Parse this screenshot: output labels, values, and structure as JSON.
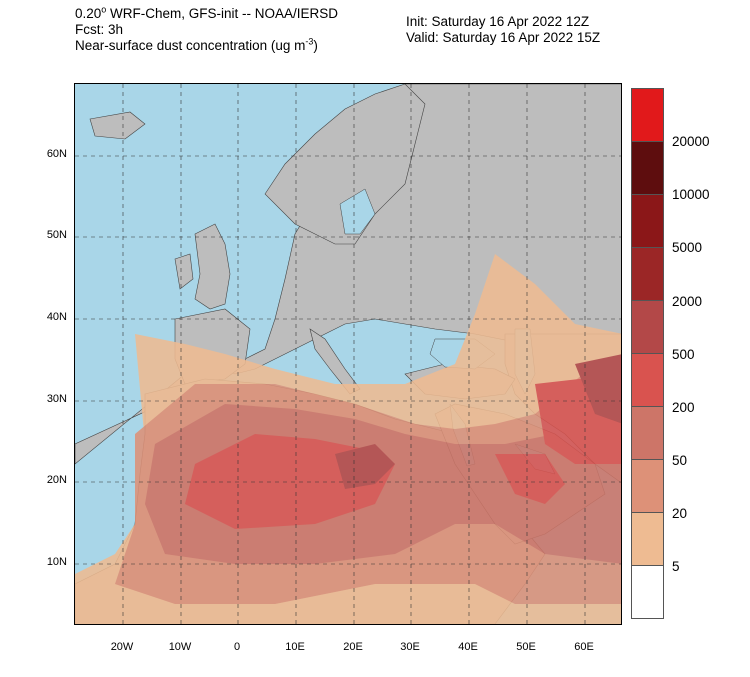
{
  "header": {
    "model_prefix": "0.20",
    "model_degree": "o",
    "model_rest": " WRF-Chem, GFS-init -- NOAA/IERSD",
    "fcst": "Fcst: 3h",
    "field_prefix": "Near-surface dust concentration (ug m",
    "field_exp": "-3",
    "field_suffix": ")",
    "init": "Init: Saturday 16 Apr 2022  12Z",
    "valid": "Valid: Saturday 16 Apr 2022  15Z"
  },
  "map": {
    "lat_labels": [
      "60N",
      "50N",
      "40N",
      "30N",
      "20N",
      "10N"
    ],
    "lon_labels": [
      "20W",
      "10W",
      "0",
      "10E",
      "20E",
      "30E",
      "40E",
      "50E",
      "60E"
    ],
    "colors": {
      "ocean": "#a9d6e8",
      "land": "#bdbdbd"
    }
  },
  "legend": {
    "labels": [
      "20000",
      "10000",
      "5000",
      "2000",
      "500",
      "200",
      "50",
      "20",
      "5"
    ],
    "colors": [
      "#e1191b",
      "#5e0d0e",
      "#8b1718",
      "#9b2626",
      "#b34848",
      "#d9534f",
      "#cd7568",
      "#dd9178",
      "#eebb92",
      "#ffffff"
    ]
  }
}
